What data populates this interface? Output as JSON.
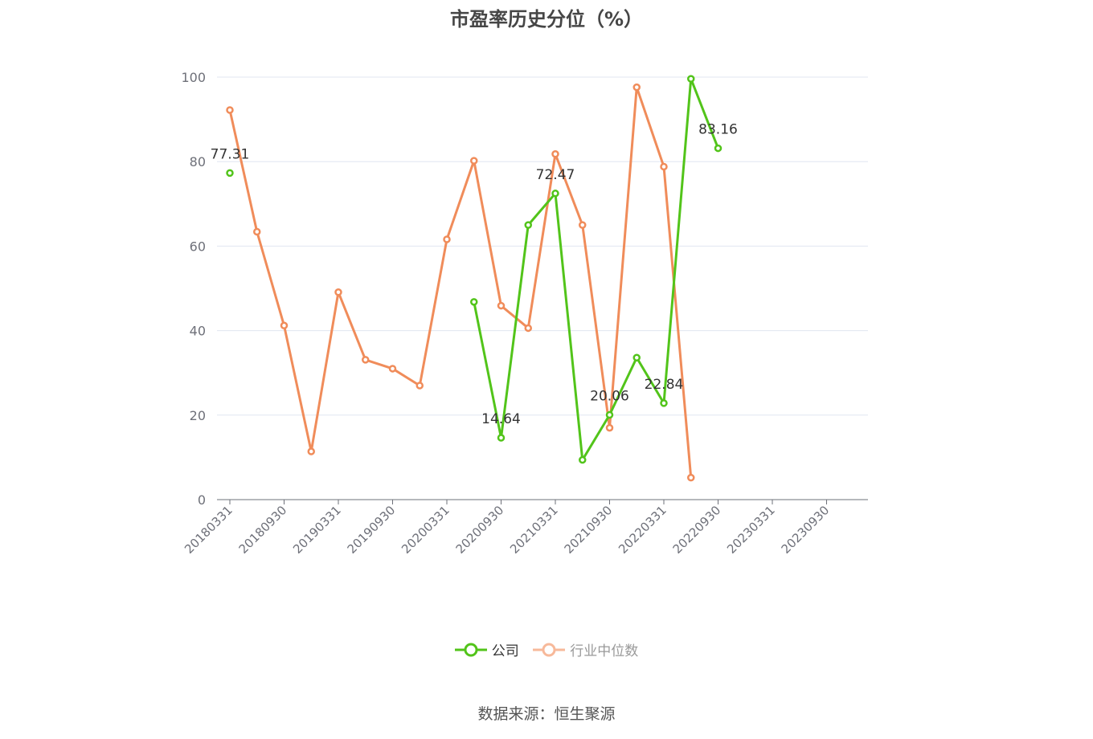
{
  "chart_data": {
    "type": "line",
    "title": "市盈率历史分位（%）",
    "xlabel": "",
    "ylabel": "",
    "ylim": [
      0,
      100
    ],
    "y_ticks": [
      0,
      20,
      40,
      60,
      80,
      100
    ],
    "grid": true,
    "legend_position": "bottom",
    "x_tick_labels": [
      "20180331",
      "20180930",
      "20190331",
      "20190930",
      "20200331",
      "20200930",
      "20210331",
      "20210930",
      "20220331",
      "20220930",
      "20230331",
      "20230930"
    ],
    "categories": [
      "20180331",
      "20180630",
      "20180930",
      "20181231",
      "20190331",
      "20190630",
      "20190930",
      "20191231",
      "20200331",
      "20200630",
      "20200930",
      "20201231",
      "20210331",
      "20210630",
      "20210930",
      "20211231",
      "20220331",
      "20220630",
      "20220930",
      "20221231",
      "20230331",
      "20230630",
      "20230930",
      "20231231"
    ],
    "series": [
      {
        "name": "公司",
        "color": "#52c41a",
        "values": [
          77.31,
          null,
          null,
          null,
          null,
          null,
          null,
          null,
          null,
          46.8,
          14.64,
          65.0,
          72.47,
          9.4,
          20.06,
          33.6,
          22.84,
          99.6,
          83.16,
          null,
          null,
          null,
          null,
          null
        ],
        "labels": {
          "0": "77.31",
          "10": "14.64",
          "12": "72.47",
          "14": "20.06",
          "16": "22.84",
          "18": "83.16"
        }
      },
      {
        "name": "行业中位数",
        "color": "#f08c5a",
        "values": [
          92.2,
          63.4,
          41.2,
          11.4,
          49.1,
          33.1,
          31.0,
          27.0,
          61.6,
          80.2,
          45.9,
          40.6,
          81.8,
          65.0,
          17.0,
          97.6,
          78.8,
          5.2,
          null,
          null,
          null,
          null,
          null,
          null
        ]
      }
    ]
  },
  "legend": {
    "company": "公司",
    "industry": "行业中位数"
  },
  "source_text": "数据来源：恒生聚源"
}
